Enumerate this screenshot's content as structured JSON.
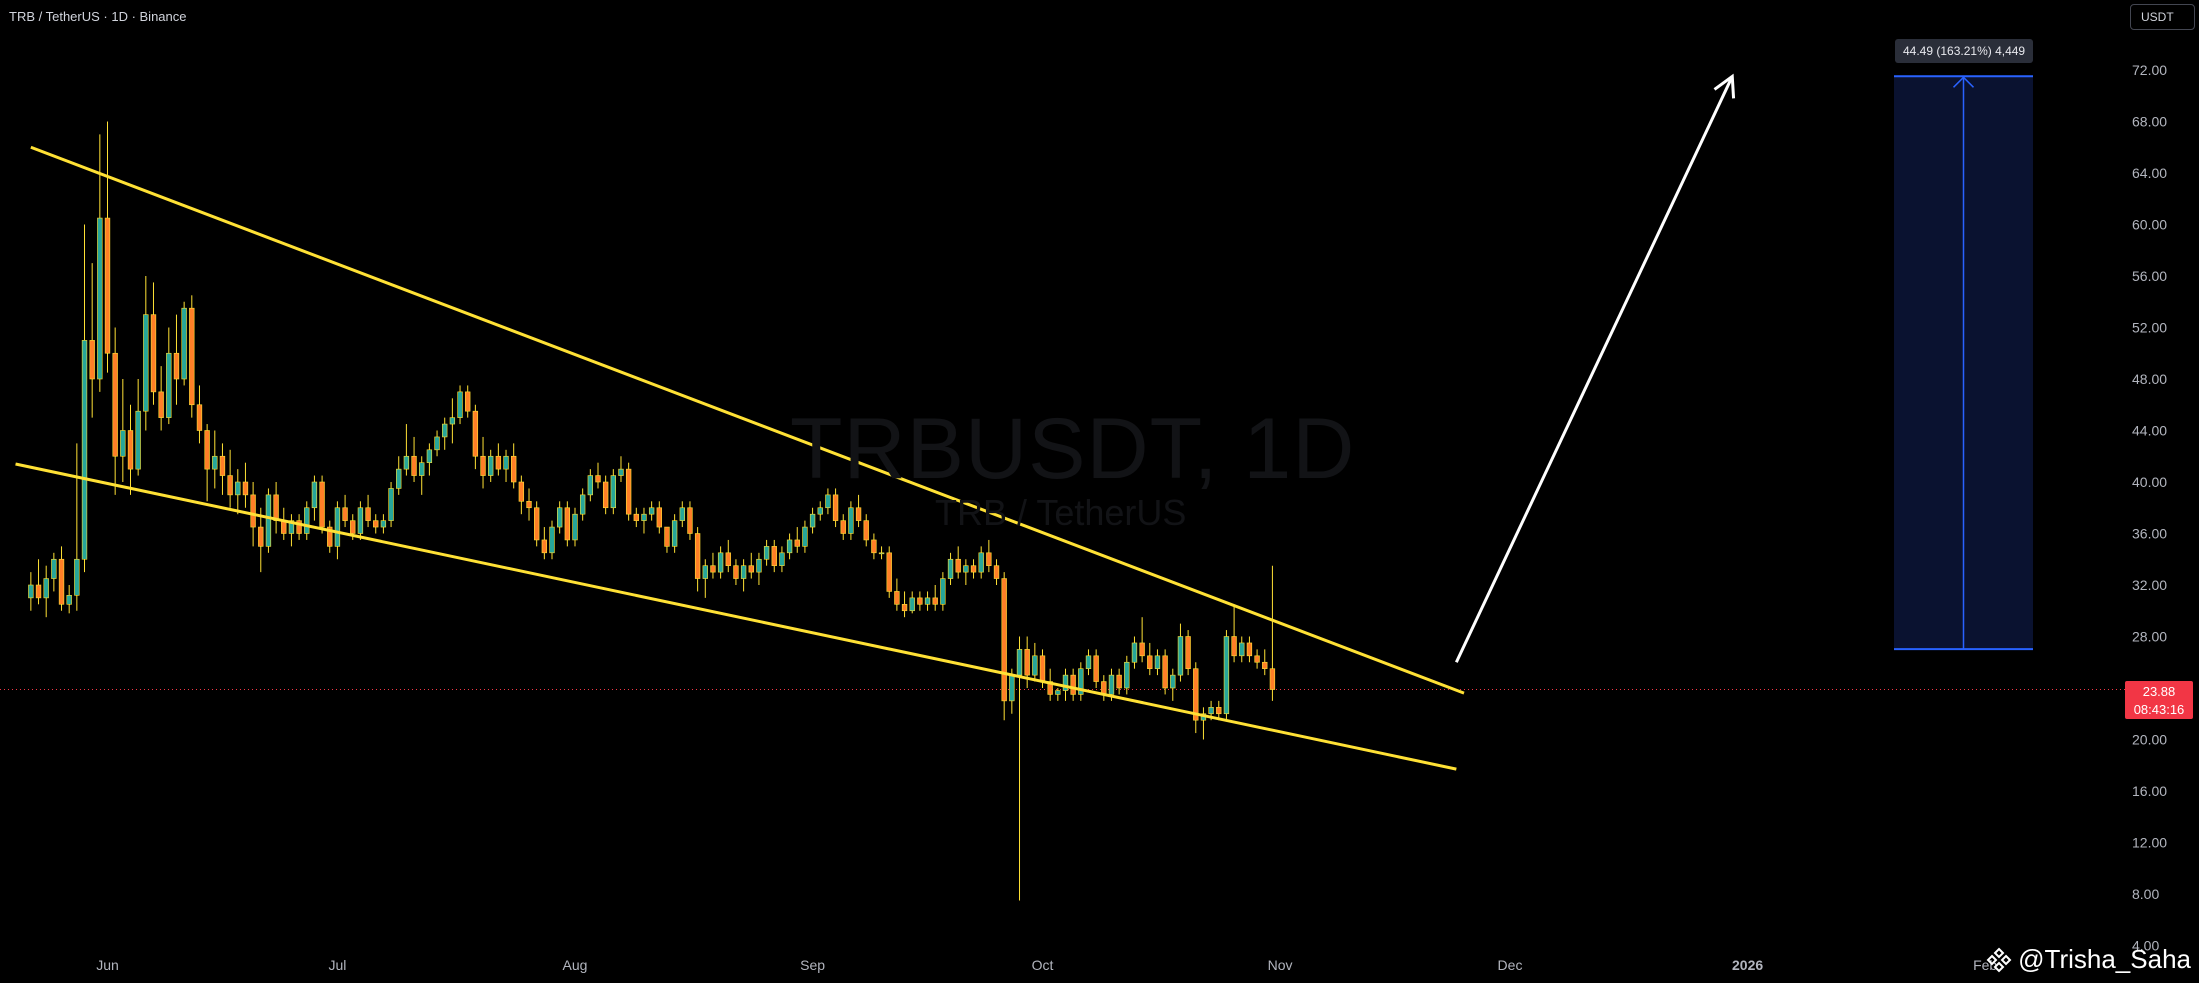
{
  "header": {
    "title": "TRB / TetherUS · 1D · Binance",
    "currency_button": "USDT"
  },
  "watermark": {
    "symbol": "TRBUSDT, 1D",
    "name": "TRB / TetherUS"
  },
  "current_price": {
    "value": "23.88",
    "countdown": "08:43:16"
  },
  "measure": {
    "label": "44.49 (163.21%) 4,449"
  },
  "author": {
    "handle": "@Trisha_Saha"
  },
  "colors": {
    "background": "#000000",
    "up_candle": "#26a69a",
    "down_candle": "#ff7f27",
    "trendline": "#ffe135",
    "arrow": "#ffffff",
    "target_box_fill": "#0a1230",
    "target_box_line": "#2962ff",
    "price_line": "#f23645"
  },
  "chart_data": {
    "type": "candlestick",
    "title": "TRB / TetherUS · 1D · Binance",
    "yaxis": {
      "ticks": [
        8,
        12,
        16,
        20,
        28,
        32,
        36,
        40,
        44,
        48,
        52,
        56,
        60,
        64,
        68,
        72
      ],
      "tick_labels": [
        "8.00",
        "12.00",
        "16.00",
        "20.00",
        "28.00",
        "32.00",
        "36.00",
        "40.00",
        "44.00",
        "48.00",
        "52.00",
        "56.00",
        "60.00",
        "64.00",
        "68.00",
        "72.00"
      ],
      "ylim": [
        4,
        76
      ],
      "bottom_label": "4.00"
    },
    "xaxis": {
      "ticks": [
        "Jun",
        "Jul",
        "Aug",
        "Sep",
        "Oct",
        "Nov",
        "Dec",
        "2026",
        "Feb"
      ],
      "bold_ticks": [
        "2026"
      ]
    },
    "series": [
      {
        "kind": "ohlc",
        "start_date": "2025-05-22",
        "ohlc": [
          [
            31.0,
            33.0,
            30.0,
            32.0
          ],
          [
            32.0,
            34.0,
            30.5,
            31.0
          ],
          [
            31.0,
            33.5,
            29.5,
            32.5
          ],
          [
            32.5,
            34.5,
            31.5,
            34.0
          ],
          [
            34.0,
            35.0,
            30.0,
            30.5
          ],
          [
            30.5,
            32.0,
            29.8,
            31.2
          ],
          [
            31.2,
            43.0,
            30.0,
            34.0
          ],
          [
            34.0,
            60.0,
            33.0,
            51.0
          ],
          [
            51.0,
            57.0,
            45.0,
            48.0
          ],
          [
            48.0,
            67.0,
            47.0,
            60.5
          ],
          [
            60.5,
            68.0,
            48.5,
            50.0
          ],
          [
            50.0,
            52.0,
            39.0,
            42.0
          ],
          [
            42.0,
            48.0,
            40.0,
            44.0
          ],
          [
            44.0,
            46.0,
            39.0,
            41.0
          ],
          [
            41.0,
            48.0,
            40.5,
            45.5
          ],
          [
            45.5,
            56.0,
            44.0,
            53.0
          ],
          [
            53.0,
            55.5,
            46.0,
            47.0
          ],
          [
            47.0,
            49.0,
            44.0,
            45.0
          ],
          [
            45.0,
            52.0,
            44.5,
            50.0
          ],
          [
            50.0,
            53.0,
            46.0,
            48.0
          ],
          [
            48.0,
            54.0,
            47.5,
            53.5
          ],
          [
            53.5,
            54.5,
            45.0,
            46.0
          ],
          [
            46.0,
            47.5,
            43.0,
            44.0
          ],
          [
            44.0,
            44.5,
            38.5,
            41.0
          ],
          [
            41.0,
            44.0,
            39.5,
            42.0
          ],
          [
            42.0,
            43.0,
            39.0,
            40.5
          ],
          [
            40.5,
            42.5,
            38.0,
            39.0
          ],
          [
            39.0,
            41.0,
            37.5,
            40.0
          ],
          [
            40.0,
            41.5,
            38.0,
            39.0
          ],
          [
            39.0,
            40.0,
            35.0,
            36.5
          ],
          [
            36.5,
            38.0,
            33.0,
            35.0
          ],
          [
            35.0,
            39.5,
            34.5,
            39.0
          ],
          [
            39.0,
            40.0,
            36.0,
            37.0
          ],
          [
            37.0,
            38.0,
            35.5,
            36.0
          ],
          [
            36.0,
            37.5,
            35.0,
            37.0
          ],
          [
            37.0,
            37.5,
            35.5,
            36.0
          ],
          [
            36.0,
            38.5,
            35.5,
            38.0
          ],
          [
            38.0,
            40.5,
            37.0,
            40.0
          ],
          [
            40.0,
            40.5,
            36.0,
            36.5
          ],
          [
            36.5,
            37.0,
            34.5,
            35.0
          ],
          [
            35.0,
            38.5,
            34.0,
            38.0
          ],
          [
            38.0,
            39.0,
            36.5,
            37.0
          ],
          [
            37.0,
            37.5,
            35.5,
            36.0
          ],
          [
            36.0,
            38.5,
            35.5,
            38.0
          ],
          [
            38.0,
            39.0,
            36.5,
            37.0
          ],
          [
            37.0,
            37.5,
            36.0,
            36.5
          ],
          [
            36.5,
            37.5,
            36.0,
            37.0
          ],
          [
            37.0,
            40.0,
            36.5,
            39.5
          ],
          [
            39.5,
            42.0,
            39.0,
            41.0
          ],
          [
            41.0,
            44.5,
            40.5,
            42.0
          ],
          [
            42.0,
            43.5,
            40.0,
            40.5
          ],
          [
            40.5,
            42.0,
            39.0,
            41.5
          ],
          [
            41.5,
            43.0,
            40.5,
            42.5
          ],
          [
            42.5,
            44.0,
            42.0,
            43.5
          ],
          [
            43.5,
            45.0,
            42.5,
            44.5
          ],
          [
            44.5,
            46.5,
            43.0,
            45.0
          ],
          [
            45.0,
            47.5,
            44.5,
            47.0
          ],
          [
            47.0,
            47.5,
            45.0,
            45.5
          ],
          [
            45.5,
            46.0,
            41.0,
            42.0
          ],
          [
            42.0,
            43.5,
            39.5,
            40.5
          ],
          [
            40.5,
            42.5,
            40.0,
            42.0
          ],
          [
            42.0,
            43.0,
            40.5,
            41.0
          ],
          [
            41.0,
            42.5,
            40.0,
            42.0
          ],
          [
            42.0,
            43.0,
            39.5,
            40.0
          ],
          [
            40.0,
            40.5,
            37.5,
            38.5
          ],
          [
            38.5,
            39.5,
            37.0,
            38.0
          ],
          [
            38.0,
            38.5,
            35.0,
            35.5
          ],
          [
            35.5,
            36.5,
            34.0,
            34.5
          ],
          [
            34.5,
            37.0,
            34.0,
            36.5
          ],
          [
            36.5,
            38.5,
            36.0,
            38.0
          ],
          [
            38.0,
            38.5,
            35.0,
            35.5
          ],
          [
            35.5,
            38.0,
            35.0,
            37.5
          ],
          [
            37.5,
            39.5,
            37.0,
            39.0
          ],
          [
            39.0,
            41.0,
            38.5,
            40.5
          ],
          [
            40.5,
            41.5,
            39.5,
            40.0
          ],
          [
            40.0,
            40.5,
            37.5,
            38.0
          ],
          [
            38.0,
            41.0,
            37.5,
            40.5
          ],
          [
            40.5,
            42.0,
            40.0,
            41.0
          ],
          [
            41.0,
            41.5,
            37.0,
            37.5
          ],
          [
            37.5,
            38.0,
            36.5,
            37.0
          ],
          [
            37.0,
            38.0,
            36.0,
            37.5
          ],
          [
            37.5,
            38.5,
            37.0,
            38.0
          ],
          [
            38.0,
            38.5,
            36.0,
            36.5
          ],
          [
            36.5,
            36.5,
            34.5,
            35.0
          ],
          [
            35.0,
            37.5,
            34.5,
            37.0
          ],
          [
            37.0,
            38.5,
            36.5,
            38.0
          ],
          [
            38.0,
            38.5,
            35.5,
            36.0
          ],
          [
            36.0,
            36.5,
            31.5,
            32.5
          ],
          [
            32.5,
            34.0,
            31.0,
            33.5
          ],
          [
            33.5,
            34.5,
            32.5,
            33.0
          ],
          [
            33.0,
            35.0,
            32.5,
            34.5
          ],
          [
            34.5,
            35.5,
            33.0,
            33.5
          ],
          [
            33.5,
            34.0,
            32.0,
            32.5
          ],
          [
            32.5,
            34.0,
            31.5,
            33.5
          ],
          [
            33.5,
            34.5,
            32.5,
            33.0
          ],
          [
            33.0,
            34.5,
            32.0,
            34.0
          ],
          [
            34.0,
            35.5,
            33.5,
            35.0
          ],
          [
            35.0,
            35.5,
            33.0,
            33.5
          ],
          [
            33.5,
            35.0,
            33.0,
            34.5
          ],
          [
            34.5,
            36.0,
            34.0,
            35.5
          ],
          [
            35.5,
            36.5,
            34.5,
            35.0
          ],
          [
            35.0,
            37.0,
            34.5,
            36.5
          ],
          [
            36.5,
            38.0,
            36.0,
            37.5
          ],
          [
            37.5,
            38.5,
            37.0,
            38.0
          ],
          [
            38.0,
            39.5,
            37.5,
            39.0
          ],
          [
            39.0,
            39.5,
            36.5,
            37.0
          ],
          [
            37.0,
            37.5,
            35.5,
            36.0
          ],
          [
            36.0,
            38.5,
            35.5,
            38.0
          ],
          [
            38.0,
            39.0,
            36.5,
            37.0
          ],
          [
            37.0,
            37.5,
            35.0,
            35.5
          ],
          [
            35.5,
            36.0,
            34.0,
            34.5
          ],
          [
            34.5,
            35.0,
            34.0,
            34.5
          ],
          [
            34.5,
            35.0,
            31.0,
            31.5
          ],
          [
            31.5,
            32.5,
            30.0,
            30.5
          ],
          [
            30.5,
            31.5,
            29.5,
            30.0
          ],
          [
            30.0,
            31.5,
            29.8,
            31.0
          ],
          [
            31.0,
            31.5,
            30.0,
            30.5
          ],
          [
            30.5,
            31.5,
            30.0,
            31.0
          ],
          [
            31.0,
            32.0,
            30.0,
            30.5
          ],
          [
            30.5,
            33.0,
            30.0,
            32.5
          ],
          [
            32.5,
            34.5,
            32.0,
            34.0
          ],
          [
            34.0,
            35.0,
            32.5,
            33.0
          ],
          [
            33.0,
            34.0,
            32.0,
            33.5
          ],
          [
            33.5,
            34.0,
            32.5,
            33.0
          ],
          [
            33.0,
            35.0,
            32.5,
            34.5
          ],
          [
            34.5,
            35.5,
            33.0,
            33.5
          ],
          [
            33.5,
            34.0,
            32.0,
            32.5
          ],
          [
            32.5,
            33.0,
            21.5,
            23.0
          ],
          [
            23.0,
            25.5,
            22.0,
            25.0
          ],
          [
            25.0,
            28.0,
            7.5,
            27.0
          ],
          [
            27.0,
            28.0,
            24.0,
            25.0
          ],
          [
            25.0,
            27.5,
            24.5,
            26.5
          ],
          [
            26.5,
            27.0,
            24.0,
            24.5
          ],
          [
            24.5,
            25.5,
            23.0,
            23.5
          ],
          [
            23.5,
            24.0,
            23.0,
            23.8
          ],
          [
            23.8,
            25.5,
            23.0,
            25.0
          ],
          [
            25.0,
            25.5,
            23.0,
            23.5
          ],
          [
            23.5,
            26.0,
            23.0,
            25.5
          ],
          [
            25.5,
            27.0,
            25.0,
            26.5
          ],
          [
            26.5,
            27.0,
            24.0,
            24.5
          ],
          [
            24.5,
            25.0,
            23.0,
            23.5
          ],
          [
            23.5,
            25.5,
            23.0,
            25.0
          ],
          [
            25.0,
            25.5,
            23.5,
            24.0
          ],
          [
            24.0,
            26.5,
            23.5,
            26.0
          ],
          [
            26.0,
            28.0,
            25.5,
            27.5
          ],
          [
            27.5,
            29.5,
            26.0,
            26.5
          ],
          [
            26.5,
            27.5,
            25.0,
            25.5
          ],
          [
            25.5,
            27.0,
            25.0,
            26.5
          ],
          [
            26.5,
            27.0,
            23.5,
            24.0
          ],
          [
            24.0,
            25.5,
            23.0,
            25.0
          ],
          [
            25.0,
            29.0,
            24.5,
            28.0
          ],
          [
            28.0,
            28.5,
            25.0,
            25.5
          ],
          [
            25.5,
            26.0,
            20.5,
            21.5
          ],
          [
            21.5,
            22.5,
            20.0,
            22.0
          ],
          [
            22.0,
            23.0,
            21.5,
            22.5
          ],
          [
            22.5,
            23.0,
            21.5,
            22.0
          ],
          [
            22.0,
            28.5,
            21.5,
            28.0
          ],
          [
            28.0,
            30.5,
            26.0,
            26.5
          ],
          [
            26.5,
            28.0,
            26.0,
            27.5
          ],
          [
            27.5,
            28.0,
            26.0,
            26.5
          ],
          [
            26.5,
            27.0,
            25.5,
            26.0
          ],
          [
            26.0,
            27.0,
            25.0,
            25.5
          ],
          [
            25.5,
            33.5,
            23.0,
            23.88
          ]
        ]
      }
    ],
    "current_price": 23.88,
    "annotations": [
      {
        "type": "trendline",
        "name": "upper-resistance",
        "points": [
          [
            "2025-05-22",
            66.0
          ],
          [
            "2025-11-25",
            23.6
          ]
        ]
      },
      {
        "type": "trendline",
        "name": "lower-support",
        "points": [
          [
            "2025-05-20",
            41.4
          ],
          [
            "2025-11-24",
            17.7
          ]
        ]
      },
      {
        "type": "arrow",
        "from": [
          "2025-11-24",
          26.0
        ],
        "to": [
          "2025-12-30",
          71.5
        ]
      },
      {
        "type": "price_range",
        "from": 27.02,
        "to": 71.51,
        "label": "44.49 (163.21%) 4,449"
      }
    ]
  }
}
